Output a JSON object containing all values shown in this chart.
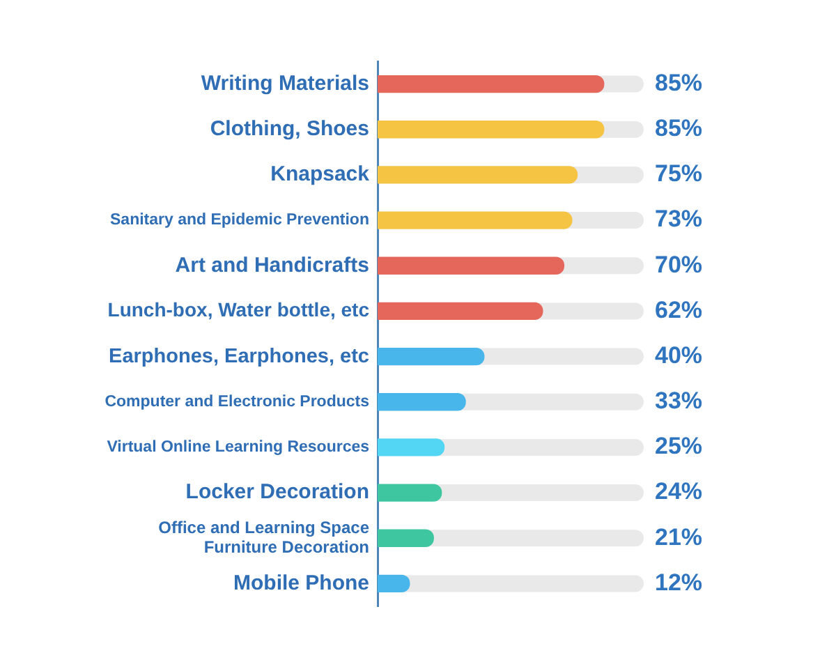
{
  "chart_data": {
    "type": "bar",
    "orientation": "horizontal",
    "categories": [
      "Writing Materials",
      "Clothing, Shoes",
      "Knapsack",
      "Sanitary and Epidemic Prevention",
      "Art and Handicrafts",
      "Lunch-box, Water bottle, etc",
      "Earphones, Earphones, etc",
      "Computer and Electronic Products",
      "Virtual Online Learning Resources",
      "Locker Decoration",
      "Office and Learning Space Furniture Decoration",
      "Mobile Phone"
    ],
    "values": [
      85,
      85,
      75,
      73,
      70,
      62,
      40,
      33,
      25,
      24,
      21,
      12
    ],
    "colors": [
      "#e5675c",
      "#f5c443",
      "#f5c443",
      "#f5c443",
      "#e5675c",
      "#e5675c",
      "#48b6ea",
      "#48b6ea",
      "#52d6f4",
      "#3dc69f",
      "#3dc69f",
      "#48b6ea"
    ],
    "value_labels": [
      "85%",
      "85%",
      "75%",
      "73%",
      "70%",
      "62%",
      "40%",
      "33%",
      "25%",
      "24%",
      "21%",
      "12%"
    ],
    "xlim": [
      0,
      100
    ],
    "tick_labels": "y"
  }
}
